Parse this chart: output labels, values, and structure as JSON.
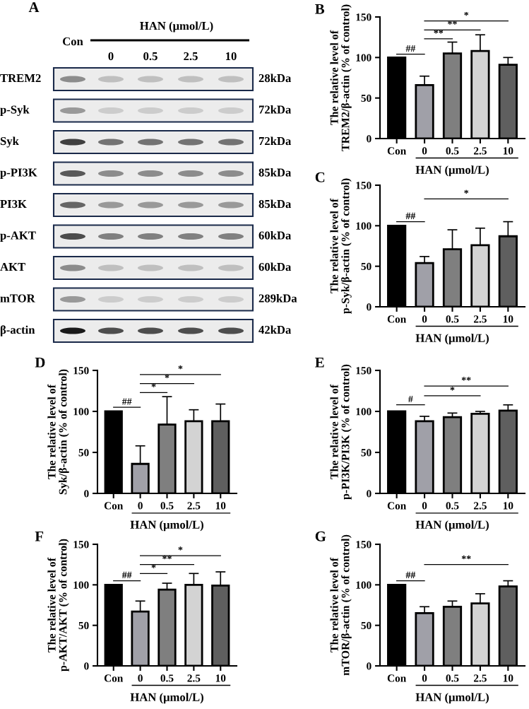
{
  "chart_data": [
    {
      "type": "other",
      "title": "A",
      "xlabel": "HAN (μmol/L)",
      "categories": [
        "Con",
        "0",
        "0.5",
        "2.5",
        "10"
      ],
      "y_categories": [
        "TREM2",
        "p-Syk",
        "Syk",
        "p-PI3K",
        "PI3K",
        "p-AKT",
        "AKT",
        "mTOR",
        "β-actin"
      ],
      "y2_categories": [
        "28kDa",
        "72kDa",
        "72kDa",
        "85kDa",
        "85kDa",
        "60kDa",
        "60kDa",
        "289kDa",
        "42kDa"
      ]
    },
    {
      "type": "bar",
      "title": "B",
      "ylabel": "The relative level of\nTREM2/β-actin (% of control)",
      "xlabel": "HAN (μmol/L)",
      "categories": [
        "Con",
        "0",
        "0.5",
        "2.5",
        "10"
      ],
      "colors": [
        "#000000",
        "#a0a0a8",
        "#7f7f7f",
        "#d3d3d3",
        "#5f5f5f"
      ],
      "values": [
        100,
        66,
        105,
        108,
        91
      ],
      "errors": [
        null,
        [
          66,
          77
        ],
        [
          105,
          119
        ],
        [
          108,
          128
        ],
        [
          91,
          100
        ]
      ],
      "ylim": [
        0,
        150
      ],
      "yticks": [
        0,
        50,
        100,
        150
      ],
      "annotations": [
        "##",
        "**",
        "**",
        "*"
      ]
    },
    {
      "type": "bar",
      "title": "C",
      "ylabel": "The relative level of\np-Syk/β-actin (% of control)",
      "xlabel": "HAN (μmol/L)",
      "categories": [
        "Con",
        "0",
        "0.5",
        "2.5",
        "10"
      ],
      "colors": [
        "#000000",
        "#a0a0a8",
        "#7f7f7f",
        "#d3d3d3",
        "#5f5f5f"
      ],
      "values": [
        100,
        54,
        71,
        76,
        87
      ],
      "errors": [
        null,
        [
          54,
          62
        ],
        [
          71,
          95
        ],
        [
          76,
          97
        ],
        [
          87,
          105
        ]
      ],
      "ylim": [
        0,
        150
      ],
      "yticks": [
        0,
        50,
        100,
        150
      ],
      "annotations": [
        "##",
        "*"
      ]
    },
    {
      "type": "bar",
      "title": "D",
      "ylabel": "The relative level of\nSyk/β-actin (% of control)",
      "xlabel": "HAN (μmol/L)",
      "categories": [
        "Con",
        "0",
        "0.5",
        "2.5",
        "10"
      ],
      "colors": [
        "#000000",
        "#a0a0a8",
        "#7f7f7f",
        "#d3d3d3",
        "#5f5f5f"
      ],
      "values": [
        100,
        36,
        84,
        88,
        88
      ],
      "errors": [
        null,
        [
          36,
          58
        ],
        [
          84,
          118
        ],
        [
          88,
          102
        ],
        [
          88,
          109
        ]
      ],
      "ylim": [
        0,
        150
      ],
      "yticks": [
        0,
        50,
        100,
        150
      ],
      "annotations": [
        "##",
        "*",
        "*",
        "*"
      ]
    },
    {
      "type": "bar",
      "title": "E",
      "ylabel": "The relative level of\np-PI3K/PI3K (% of control)",
      "xlabel": "HAN (μmol/L)",
      "categories": [
        "Con",
        "0",
        "0.5",
        "2.5",
        "10"
      ],
      "colors": [
        "#000000",
        "#a0a0a8",
        "#7f7f7f",
        "#d3d3d3",
        "#5f5f5f"
      ],
      "values": [
        100,
        88,
        93,
        97,
        101
      ],
      "errors": [
        null,
        [
          88,
          94
        ],
        [
          93,
          98
        ],
        [
          97,
          100
        ],
        [
          101,
          108
        ]
      ],
      "ylim": [
        0,
        150
      ],
      "yticks": [
        0,
        50,
        100,
        150
      ],
      "annotations": [
        "#",
        "*",
        "**"
      ]
    },
    {
      "type": "bar",
      "title": "F",
      "ylabel": "The relative level of\np-AKT/AKT (% of control)",
      "xlabel": "HAN (μmol/L)",
      "categories": [
        "Con",
        "0",
        "0.5",
        "2.5",
        "10"
      ],
      "colors": [
        "#000000",
        "#a0a0a8",
        "#7f7f7f",
        "#d3d3d3",
        "#5f5f5f"
      ],
      "values": [
        100,
        67,
        94,
        100,
        99
      ],
      "errors": [
        null,
        [
          67,
          80
        ],
        [
          94,
          102
        ],
        [
          100,
          114
        ],
        [
          99,
          116
        ]
      ],
      "ylim": [
        0,
        150
      ],
      "yticks": [
        0,
        50,
        100,
        150
      ],
      "annotations": [
        "##",
        "*",
        "**",
        "*"
      ]
    },
    {
      "type": "bar",
      "title": "G",
      "ylabel": "The relative level of\nmTOR/β-actin (% of control)",
      "xlabel": "HAN (μmol/L)",
      "categories": [
        "Con",
        "0",
        "0.5",
        "2.5",
        "10"
      ],
      "colors": [
        "#000000",
        "#a0a0a8",
        "#7f7f7f",
        "#d3d3d3",
        "#5f5f5f"
      ],
      "values": [
        100,
        65,
        73,
        77,
        98
      ],
      "errors": [
        null,
        [
          65,
          73
        ],
        [
          73,
          80
        ],
        [
          77,
          89
        ],
        [
          98,
          105
        ]
      ],
      "ylim": [
        0,
        150
      ],
      "yticks": [
        0,
        50,
        100,
        150
      ],
      "annotations": [
        "##",
        "**"
      ]
    }
  ]
}
